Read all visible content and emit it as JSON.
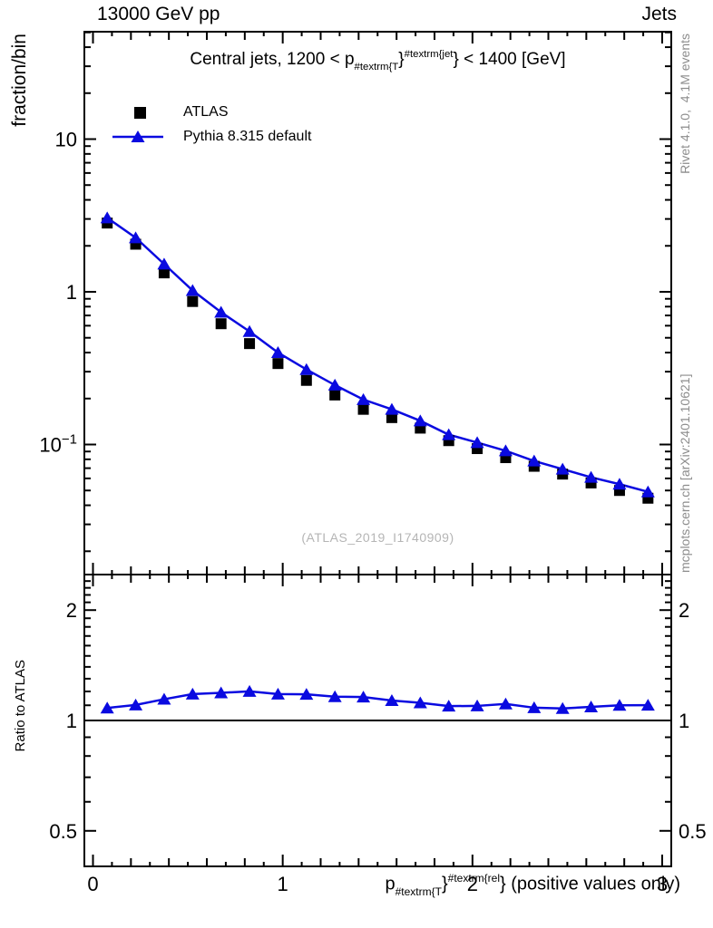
{
  "header": {
    "left": "13000 GeV pp",
    "right": "Jets"
  },
  "main_panel": {
    "y_axis_label": "fraction/bin",
    "title_parts": [
      {
        "text": "Central jets, 1200 < p"
      },
      {
        "text": "#textrm{T",
        "style": "sub"
      },
      {
        "text": "}"
      },
      {
        "text": "#textrm{jet",
        "style": "sup"
      },
      {
        "text": "}"
      },
      {
        "text": " < 1400 [GeV]"
      }
    ],
    "legend": [
      {
        "name": "ATLAS"
      },
      {
        "name": "Pythia 8.315 default"
      }
    ],
    "watermark": "(ATLAS_2019_I1740909)"
  },
  "ratio_panel": {
    "y_axis_label": "Ratio to ATLAS"
  },
  "x_axis": {
    "label_parts": [
      {
        "text": "p"
      },
      {
        "text": "#textrm{T",
        "style": "sub"
      },
      {
        "text": "}"
      },
      {
        "text": "#textrm{rel",
        "style": "sup"
      },
      {
        "text": "}"
      },
      {
        "text": " (positive values only)"
      }
    ]
  },
  "side_notes": {
    "top": "Rivet 4.1.0,  4.1M events",
    "bottom": "mcplots.cern.ch [arXiv:2401.10621]"
  },
  "colors": {
    "pythia_blue": "#0a0ae0",
    "note_gray": "#8c8c8c",
    "watermark_gray": "#b5b5b5",
    "atlas_black": "#000000"
  },
  "chart_data": {
    "type": "line",
    "title": "Central jets, 1200 < pT^jet < 1400 [GeV]",
    "xlabel": "pT^rel (positive values only)",
    "ylabel": "fraction/bin",
    "ratio_ylabel": "Ratio to ATLAS",
    "legend_position": "upper-left",
    "grid": false,
    "x_bin_width": 0.15,
    "x_bin_centers": [
      0.075,
      0.225,
      0.375,
      0.525,
      0.675,
      0.825,
      0.975,
      1.125,
      1.275,
      1.425,
      1.575,
      1.725,
      1.875,
      2.025,
      2.175,
      2.325,
      2.475,
      2.625,
      2.775,
      2.925
    ],
    "series": [
      {
        "name": "ATLAS",
        "marker": "square",
        "color": "#000000",
        "values": [
          2.82,
          2.05,
          1.33,
          0.864,
          0.618,
          0.458,
          0.339,
          0.263,
          0.211,
          0.17,
          0.15,
          0.128,
          0.106,
          0.094,
          0.082,
          0.072,
          0.064,
          0.056,
          0.05,
          0.0445
        ]
      },
      {
        "name": "Pythia 8.315 default",
        "marker": "triangle",
        "color": "#0a0ae0",
        "values": [
          3.05,
          2.26,
          1.52,
          1.02,
          0.735,
          0.55,
          0.4,
          0.31,
          0.245,
          0.197,
          0.17,
          0.143,
          0.116,
          0.103,
          0.091,
          0.078,
          0.069,
          0.061,
          0.055,
          0.049
        ]
      }
    ],
    "ratio_reference": "ATLAS",
    "axes": {
      "scale": "log",
      "xlim": [
        -0.045,
        3.047
      ],
      "main_ylim": [
        0.0141,
        50.5
      ],
      "ratio_ylim": [
        0.4,
        2.5
      ],
      "x_major_ticks": [
        0,
        1,
        2,
        3
      ],
      "main_y_labeled_ticks": [
        {
          "value": 10,
          "label": "10"
        },
        {
          "value": 1,
          "label": "1"
        },
        {
          "value": 0.1,
          "label": "10^-1"
        }
      ],
      "ratio_y_labeled_ticks": [
        {
          "value": 2,
          "label": "2"
        },
        {
          "value": 1,
          "label": "1"
        },
        {
          "value": 0.5,
          "label": "0.5"
        }
      ]
    }
  }
}
